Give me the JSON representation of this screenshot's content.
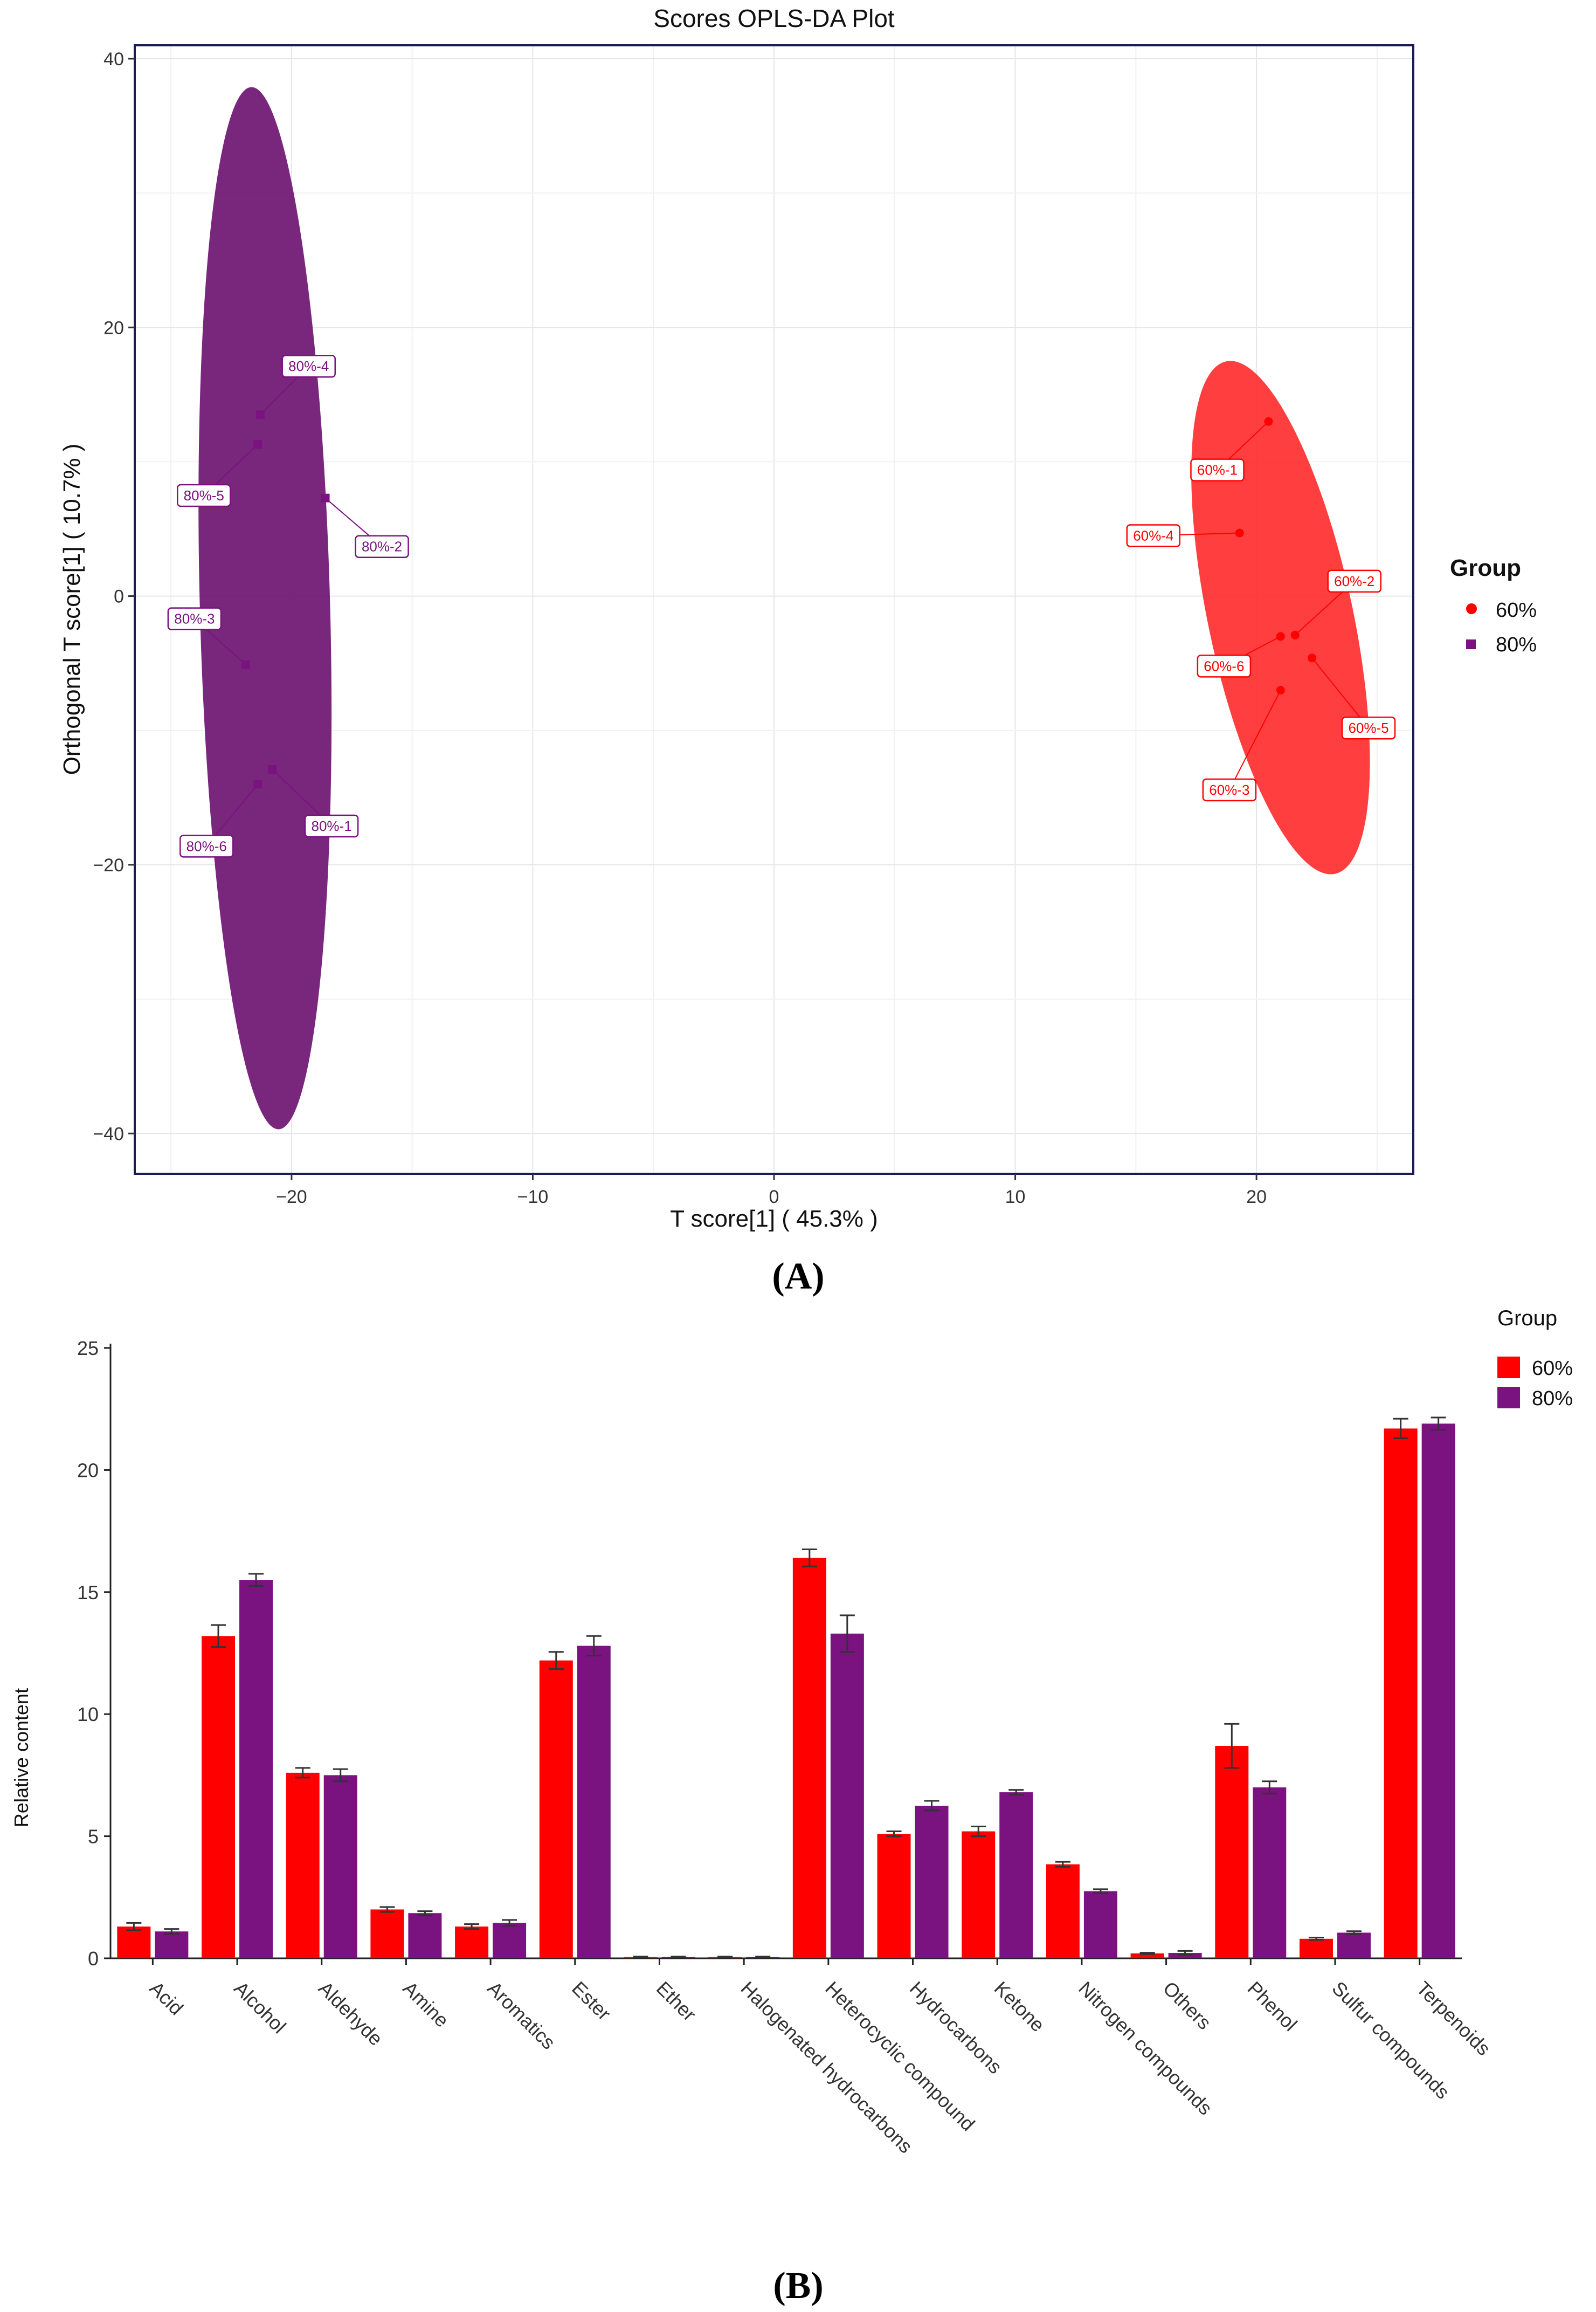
{
  "colors": {
    "g60": "#ff0000",
    "g80": "#7a1280",
    "ellipse60": "#ff2a2a",
    "ellipse80": "#6f1673"
  },
  "panelA": {
    "label_open": "(",
    "label": "A",
    "label_close": ")",
    "chart_data": {
      "type": "scatter",
      "title": "Scores OPLS-DA Plot",
      "xlabel": "T score[1] ( 45.3% )",
      "ylabel": "Orthogonal T score[1] ( 10.7% )",
      "xlim": [
        -26.5,
        26.5
      ],
      "ylim": [
        -43,
        41
      ],
      "xticks": [
        -20,
        -10,
        0,
        10,
        20
      ],
      "xtick_labels": [
        "−20",
        "−10",
        "0",
        "10",
        "20"
      ],
      "yticks": [
        -40,
        -20,
        0,
        20,
        40
      ],
      "ytick_labels": [
        "−40",
        "−20",
        "0",
        "20",
        "40"
      ],
      "grid": true,
      "legend": {
        "title": "Group",
        "position": "right"
      },
      "series": [
        {
          "name": "60%",
          "points": [
            {
              "label": "60%-1",
              "x": 20.5,
              "y": 13.0
            },
            {
              "label": "60%-2",
              "x": 21.6,
              "y": -2.9
            },
            {
              "label": "60%-3",
              "x": 21.0,
              "y": -7.0
            },
            {
              "label": "60%-4",
              "x": 19.3,
              "y": 4.7
            },
            {
              "label": "60%-5",
              "x": 22.3,
              "y": -4.6
            },
            {
              "label": "60%-6",
              "x": 21.0,
              "y": -3.0
            }
          ]
        },
        {
          "name": "80%",
          "points": [
            {
              "label": "80%-1",
              "x": -20.8,
              "y": -12.9
            },
            {
              "label": "80%-2",
              "x": -18.6,
              "y": 7.3
            },
            {
              "label": "80%-3",
              "x": -21.9,
              "y": -5.1
            },
            {
              "label": "80%-4",
              "x": -21.3,
              "y": 13.5
            },
            {
              "label": "80%-5",
              "x": -21.4,
              "y": 11.3
            },
            {
              "label": "80%-6",
              "x": -21.4,
              "y": -14.0
            }
          ]
        }
      ],
      "ellipses": [
        {
          "group": "60%",
          "cx": 21.0,
          "cy": -1.6,
          "rx": 3.0,
          "ry": 19.5,
          "tilt": -12
        },
        {
          "group": "80%",
          "cx": -21.1,
          "cy": -0.9,
          "rx": 2.7,
          "ry": 38.8,
          "tilt": -1.5
        }
      ]
    }
  },
  "panelB": {
    "label_open": "(",
    "label": "B",
    "label_close": ")",
    "chart_data": {
      "type": "bar",
      "xlabel": "",
      "ylabel": "Relative content",
      "ylim": [
        0,
        25
      ],
      "yticks": [
        0,
        5,
        10,
        15,
        20,
        25
      ],
      "ytick_labels": [
        "0",
        "5",
        "10",
        "15",
        "20",
        "25"
      ],
      "grid": false,
      "legend": {
        "title": "Group",
        "position": "top-right"
      },
      "categories": [
        "Acid",
        "Alcohol",
        "Aldehyde",
        "Amine",
        "Aromatics",
        "Ester",
        "Ether",
        "Halogenated hydrocarbons",
        "Heterocyclic compound",
        "Hydrocarbons",
        "Ketone",
        "Nitrogen compounds",
        "Others",
        "Phenol",
        "Sulfur compounds",
        "Terpenoids"
      ],
      "series": [
        {
          "name": "60%",
          "values": [
            1.3,
            13.2,
            7.6,
            2.0,
            1.3,
            12.2,
            0.05,
            0.05,
            16.4,
            5.1,
            5.2,
            3.85,
            0.2,
            8.7,
            0.8,
            21.7
          ],
          "errors": [
            0.15,
            0.45,
            0.2,
            0.1,
            0.1,
            0.35,
            0.02,
            0.02,
            0.35,
            0.1,
            0.2,
            0.1,
            0.03,
            0.9,
            0.05,
            0.4
          ]
        },
        {
          "name": "80%",
          "values": [
            1.1,
            15.5,
            7.5,
            1.85,
            1.45,
            12.8,
            0.05,
            0.05,
            13.3,
            6.25,
            6.8,
            2.75,
            0.22,
            7.0,
            1.05,
            21.9
          ],
          "errors": [
            0.1,
            0.25,
            0.25,
            0.08,
            0.12,
            0.4,
            0.02,
            0.02,
            0.75,
            0.2,
            0.1,
            0.08,
            0.08,
            0.25,
            0.06,
            0.25
          ]
        }
      ]
    }
  }
}
